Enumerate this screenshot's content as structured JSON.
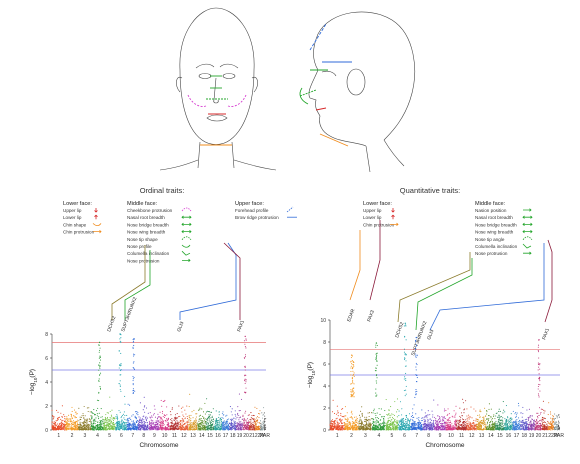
{
  "panels": {
    "ordinal": {
      "title": "Ordinal traits:",
      "groups": [
        {
          "title": "Lower face:",
          "items": [
            {
              "label": "Upper lip",
              "icon": "red-down-arrow-icon",
              "color": "#d62728"
            },
            {
              "label": "Lower lip",
              "icon": "red-up-arrow-icon",
              "color": "#d62728"
            },
            {
              "label": "Chin shape",
              "icon": "orange-curve-icon",
              "color": "#f08c1e"
            },
            {
              "label": "Chin protrusion",
              "icon": "orange-arrow-icon",
              "color": "#f08c1e"
            }
          ]
        },
        {
          "title": "Middle face:",
          "items": [
            {
              "label": "Cheekbone protrusion",
              "icon": "pink-dashed-curve-icon",
              "color": "#d63bd0"
            },
            {
              "label": "Nasal root breadth",
              "icon": "green-double-arrow-icon",
              "color": "#22a52a"
            },
            {
              "label": "Nose bridge breadth",
              "icon": "green-double-arrow-icon",
              "color": "#22a52a"
            },
            {
              "label": "Nose wing breadth",
              "icon": "green-double-arrow-icon",
              "color": "#22a52a"
            },
            {
              "label": "Nose tip shape",
              "icon": "green-dashed-curve-icon",
              "color": "#22a52a"
            },
            {
              "label": "Nose profile",
              "icon": "green-curve-icon",
              "color": "#22a52a"
            },
            {
              "label": "Columella inclination",
              "icon": "green-angle-icon",
              "color": "#22a52a"
            },
            {
              "label": "Nose protrusion",
              "icon": "green-arrow-icon",
              "color": "#22a52a"
            }
          ]
        },
        {
          "title": "Upper face:",
          "items": [
            {
              "label": "Forehead profile",
              "icon": "blue-dashed-line-icon",
              "color": "#2f6ad8"
            },
            {
              "label": "Brow ridge protrusion",
              "icon": "blue-line-icon",
              "color": "#2f6ad8"
            }
          ]
        }
      ],
      "genes": [
        "DCHS2",
        "SUPT3H/RUNX2",
        "GLI3",
        "PAX1"
      ]
    },
    "quantitative": {
      "title": "Quantitative traits:",
      "groups": [
        {
          "title": "Lower face:",
          "items": [
            {
              "label": "Upper lip",
              "icon": "red-down-arrow-icon",
              "color": "#d62728"
            },
            {
              "label": "Lower lip",
              "icon": "red-up-arrow-icon",
              "color": "#d62728"
            },
            {
              "label": "Chin protrusion",
              "icon": "orange-arrow-icon",
              "color": "#f08c1e"
            }
          ]
        },
        {
          "title": "Middle face:",
          "items": [
            {
              "label": "Nasion position",
              "icon": "green-arrow-icon",
              "color": "#22a52a"
            },
            {
              "label": "Nasal root breadth",
              "icon": "green-double-arrow-icon",
              "color": "#22a52a"
            },
            {
              "label": "Nose bridge breadth",
              "icon": "green-double-arrow-icon",
              "color": "#22a52a"
            },
            {
              "label": "Nose wing breadth",
              "icon": "green-double-arrow-icon",
              "color": "#22a52a"
            },
            {
              "label": "Nose tip angle",
              "icon": "green-dashed-curve-icon",
              "color": "#22a52a"
            },
            {
              "label": "Columella inclination",
              "icon": "green-angle-icon",
              "color": "#22a52a"
            },
            {
              "label": "Nose protrusion",
              "icon": "green-arrow-icon",
              "color": "#22a52a"
            }
          ]
        }
      ],
      "genes": [
        "EDAR",
        "PAX3",
        "DCHS2",
        "SUPT3H/RUNX2",
        "GLI3",
        "PAX1"
      ]
    }
  },
  "chart_data": [
    {
      "type": "scatter",
      "name": "ordinal-manhattan",
      "xlabel": "Chromosome",
      "ylabel": "−log10(P)",
      "ylim": [
        0,
        8
      ],
      "yticks": [
        0,
        2,
        4,
        6,
        8
      ],
      "chromosomes": [
        "1",
        "2",
        "3",
        "4",
        "5",
        "6",
        "7",
        "8",
        "9",
        "10",
        "11",
        "12",
        "13",
        "14",
        "15",
        "16",
        "17",
        "18",
        "19",
        "20",
        "21",
        "22",
        "X",
        "Y",
        "PAR"
      ],
      "thresholds": [
        {
          "value": 7.3,
          "color": "#e57373"
        },
        {
          "value": 5.0,
          "color": "#7b7be6"
        }
      ],
      "peaks": [
        {
          "chr": "4",
          "gene": "DCHS2",
          "value": 7.3
        },
        {
          "chr": "6",
          "gene": "SUPT3H/RUNX2",
          "value": 8.0
        },
        {
          "chr": "7",
          "gene": "GLI3",
          "value": 7.6
        },
        {
          "chr": "20",
          "gene": "PAX1",
          "value": 7.8
        }
      ]
    },
    {
      "type": "scatter",
      "name": "quantitative-manhattan",
      "xlabel": "Chromosome",
      "ylabel": "−log10(P)",
      "ylim": [
        0,
        10
      ],
      "yticks": [
        0,
        2,
        4,
        6,
        8,
        10
      ],
      "chromosomes": [
        "1",
        "2",
        "3",
        "4",
        "5",
        "6",
        "7",
        "8",
        "9",
        "10",
        "11",
        "12",
        "13",
        "14",
        "15",
        "16",
        "17",
        "18",
        "19",
        "20",
        "21",
        "22",
        "X",
        "Y",
        "PAR"
      ],
      "thresholds": [
        {
          "value": 7.3,
          "color": "#e57373"
        },
        {
          "value": 5.0,
          "color": "#7b7be6"
        }
      ],
      "peaks": [
        {
          "chr": "2",
          "gene": "EDAR",
          "value": 6.8
        },
        {
          "chr": "2",
          "gene": "PAX3",
          "value": 6.2
        },
        {
          "chr": "4",
          "gene": "DCHS2",
          "value": 7.9
        },
        {
          "chr": "6",
          "gene": "SUPT3H/RUNX2",
          "value": 9.7
        },
        {
          "chr": "7",
          "gene": "GLI3",
          "value": 8.4
        },
        {
          "chr": "20",
          "gene": "PAX1",
          "value": 8.2
        }
      ]
    }
  ],
  "colors": {
    "chromosomes": [
      "#e84a27",
      "#f39a23",
      "#8a7a2a",
      "#2f9a3a",
      "#79c34a",
      "#2aa7b0",
      "#2f6ad8",
      "#6a4fc7",
      "#a43bb3",
      "#d63b86",
      "#b23030",
      "#e65f3a",
      "#d99a2a",
      "#5d8f2a",
      "#2e8b57",
      "#2aa198",
      "#3b7dd8",
      "#5f58c8",
      "#8e44ad",
      "#c0397a",
      "#c0392b",
      "#e67e22",
      "#7f8c8d",
      "#95a5a6",
      "#555555"
    ],
    "red": "#d62728",
    "orange": "#f08c1e",
    "green": "#22a52a",
    "pink": "#d63bd0",
    "blue": "#2f6ad8",
    "maroon": "#8b1a3a"
  }
}
